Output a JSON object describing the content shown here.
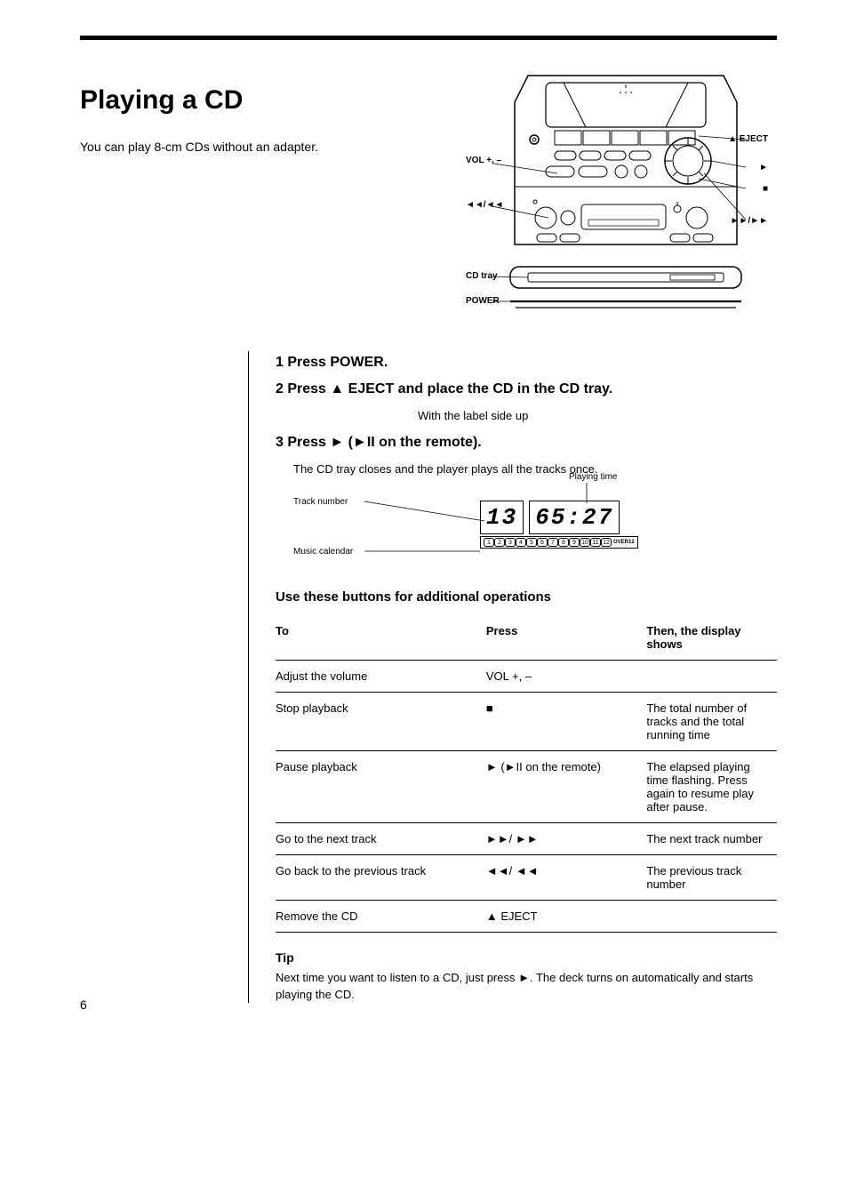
{
  "page": {
    "number": "6"
  },
  "title": "Playing a CD",
  "intro_text": "You can play 8-cm CDs without an adapter.",
  "illustration_callouts": {
    "vol": "VOL +, –",
    "eject": "▲ EJECT",
    "play": "►",
    "stop": "■",
    "skip_rev": "◄◄/◄◄",
    "power": "POWER",
    "skip_fwd": "►►/►►",
    "tray": "CD tray"
  },
  "steps": [
    {
      "heading": "1 Press POWER.",
      "text": ""
    },
    {
      "heading": "2 Press ▲ EJECT and place the CD in the CD tray.",
      "text": "With the label side up"
    },
    {
      "heading": "3 Press ► (►II on the remote).",
      "text": "The CD tray closes and the player plays all the tracks once."
    }
  ],
  "display_callouts": {
    "track_number": "Track number",
    "playing_time": "Playing time",
    "music_calendar": "Music calendar"
  },
  "display_values": {
    "track": "13",
    "time": "65:27",
    "over12": "OVER12",
    "calendar_numbers": [
      "1",
      "2",
      "3",
      "4",
      "5",
      "6",
      "7",
      "8",
      "9",
      "10",
      "11",
      "12"
    ]
  },
  "other_ops_heading": "Use these buttons for additional operations",
  "table": {
    "cols": [
      "To",
      "Press",
      "Then, the display shows"
    ],
    "rows": [
      [
        "Adjust the volume",
        "VOL +, –",
        ""
      ],
      [
        "Stop playback",
        "■",
        "The total number of tracks and the total running time"
      ],
      [
        "Pause playback",
        "► (►II on the remote)",
        "The elapsed playing time flashing. Press again to resume play after pause."
      ],
      [
        "Go to the next track",
        "►►/ ►►",
        "The next track number"
      ],
      [
        "Go back to the previous track",
        "◄◄/ ◄◄",
        "The previous track number"
      ],
      [
        "Remove the CD",
        "▲ EJECT",
        ""
      ]
    ]
  },
  "tip_heading": "Tip",
  "tip_text": "Next time you want to listen to a CD, just press ►. The deck turns on automatically and starts playing the CD.",
  "colors": {
    "background": "#ffffff",
    "text": "#000000",
    "rule": "#000000"
  },
  "typography": {
    "title_fontsize": 30,
    "body_fontsize": 14,
    "step_heading_fontsize": 16,
    "table_fontsize": 13,
    "callout_fontsize": 10
  }
}
